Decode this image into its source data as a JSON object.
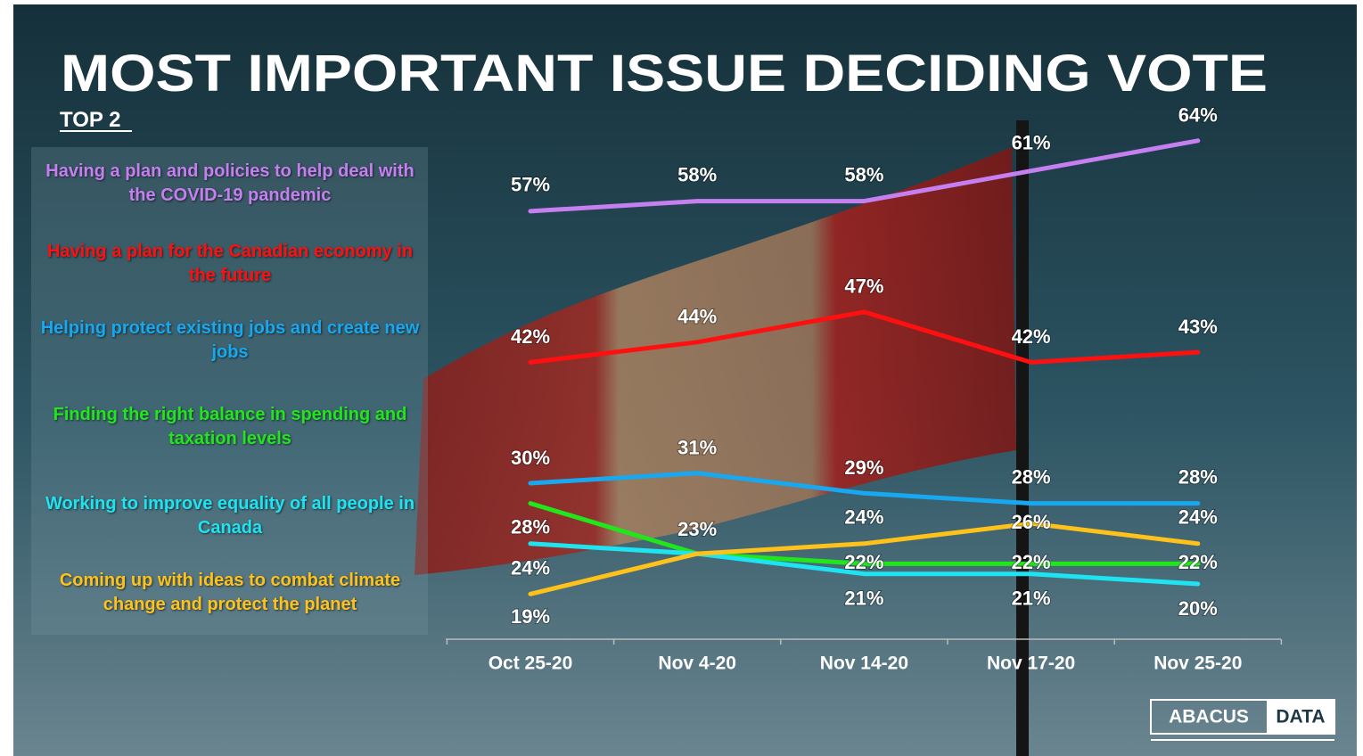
{
  "chart_data": {
    "type": "line",
    "title": "MOST IMPORTANT ISSUE DECIDING VOTE",
    "subtitle": "TOP 2",
    "categories": [
      "Oct 25-20",
      "Nov 4-20",
      "Nov 14-20",
      "Nov 17-20",
      "Nov 25-20"
    ],
    "series": [
      {
        "name": "Having a plan and policies to help deal with the COVID-19 pandemic",
        "color": "#c67ff0",
        "values": [
          57,
          58,
          58,
          61,
          64
        ],
        "value_labels": [
          "57%",
          "58%",
          "58%",
          "61%",
          "64%"
        ]
      },
      {
        "name": "Having a plan for the Canadian economy in the future",
        "color": "#ff1010",
        "values": [
          42,
          44,
          47,
          42,
          43
        ],
        "value_labels": [
          "42%",
          "44%",
          "47%",
          "42%",
          "43%"
        ]
      },
      {
        "name": "Helping protect existing jobs and create new jobs",
        "color": "#18a8f0",
        "values": [
          30,
          31,
          29,
          28,
          28
        ],
        "value_labels": [
          "30%",
          "31%",
          "29%",
          "28%",
          "28%"
        ]
      },
      {
        "name": "Finding the right balance in spending and taxation levels",
        "color": "#22e61c",
        "values": [
          28,
          23,
          22,
          22,
          22
        ],
        "value_labels": [
          "28%",
          "23%",
          "22%",
          "22%",
          "22%"
        ]
      },
      {
        "name": "Working to improve equality of all people in Canada",
        "color": "#1ee4f2",
        "values": [
          24,
          23,
          21,
          21,
          20
        ],
        "value_labels": [
          "24%",
          null,
          "21%",
          "21%",
          "20%"
        ]
      },
      {
        "name": "Coming up with ideas to combat climate change and protect the planet",
        "color": "#ffc21a",
        "values": [
          19,
          23,
          24,
          26,
          24
        ],
        "value_labels": [
          "19%",
          null,
          "24%",
          "26%",
          "24%"
        ]
      }
    ],
    "logo": [
      "ABACUS",
      "DATA"
    ]
  }
}
